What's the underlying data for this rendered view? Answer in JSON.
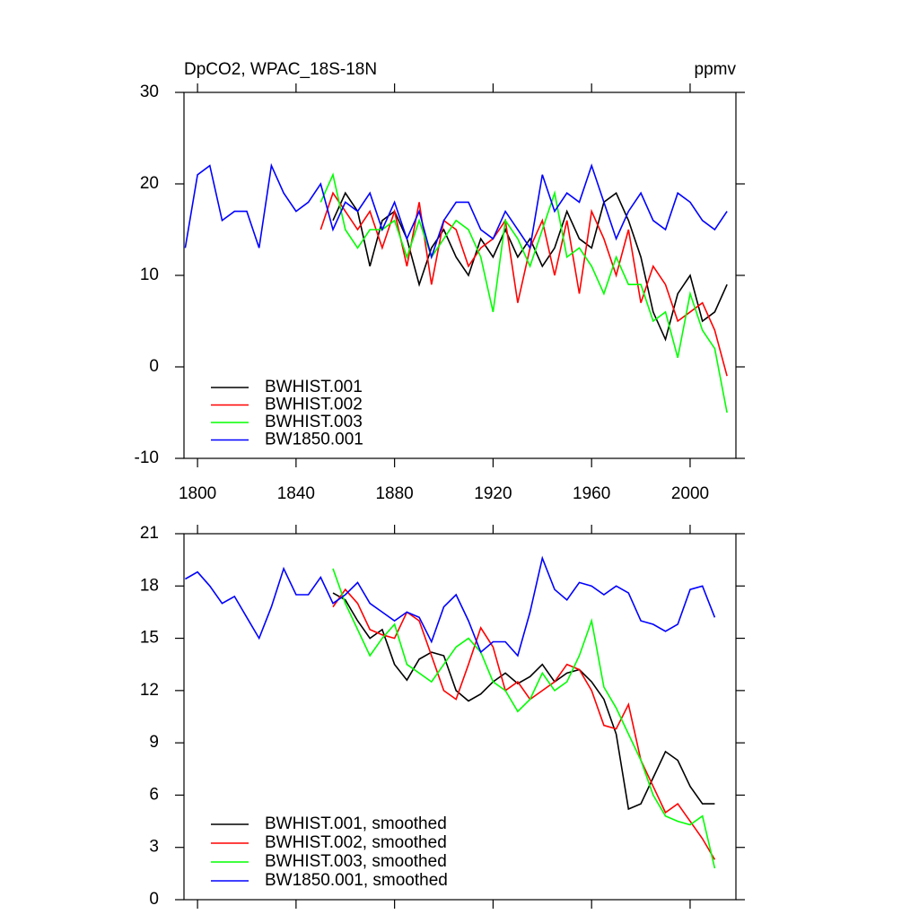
{
  "chart_data": [
    {
      "type": "line",
      "title": "DpCO2, WPAC_18S-18N",
      "units": "ppmv",
      "xlim": [
        1794.5,
        2018.6
      ],
      "xticks": [
        1800,
        1840,
        1880,
        1920,
        1960,
        2000
      ],
      "ylim": [
        -10,
        30
      ],
      "yticks": [
        -10,
        0,
        10,
        20,
        30
      ],
      "legend": "lower left",
      "series": [
        {
          "name": "BWHIST.001",
          "color": "#000000",
          "x": [
            1855,
            1860,
            1865,
            1870,
            1875,
            1880,
            1885,
            1890,
            1895,
            1900,
            1905,
            1910,
            1915,
            1920,
            1925,
            1930,
            1935,
            1940,
            1945,
            1950,
            1955,
            1960,
            1965,
            1970,
            1975,
            1980,
            1985,
            1990,
            1995,
            2000,
            2005,
            2010,
            2015
          ],
          "values": [
            16,
            19,
            17,
            11,
            16,
            17,
            14,
            9,
            13,
            15,
            12,
            10,
            14,
            12,
            15,
            12,
            14,
            11,
            13,
            17,
            14,
            13,
            18,
            19,
            16,
            12,
            6,
            3,
            8,
            10,
            5,
            6,
            9
          ]
        },
        {
          "name": "BWHIST.002",
          "color": "#ff0000",
          "x": [
            1850,
            1855,
            1860,
            1865,
            1870,
            1875,
            1880,
            1885,
            1890,
            1895,
            1900,
            1905,
            1910,
            1915,
            1920,
            1925,
            1930,
            1935,
            1940,
            1945,
            1950,
            1955,
            1960,
            1965,
            1970,
            1975,
            1980,
            1985,
            1990,
            1995,
            2000,
            2005,
            2010,
            2015
          ],
          "values": [
            15,
            19,
            17,
            15,
            17,
            13,
            17,
            11,
            18,
            9,
            16,
            15,
            11,
            13,
            14,
            16,
            7,
            13,
            16,
            10,
            16,
            8,
            17,
            14,
            10,
            15,
            7,
            11,
            9,
            5,
            6,
            7,
            4,
            -1
          ]
        },
        {
          "name": "BWHIST.003",
          "color": "#00ff00",
          "x": [
            1850,
            1855,
            1860,
            1865,
            1870,
            1875,
            1880,
            1885,
            1890,
            1895,
            1900,
            1905,
            1910,
            1915,
            1920,
            1925,
            1930,
            1935,
            1940,
            1945,
            1950,
            1955,
            1960,
            1965,
            1970,
            1975,
            1980,
            1985,
            1990,
            1995,
            2000,
            2005,
            2010,
            2015
          ],
          "values": [
            18,
            21,
            15,
            13,
            15,
            15,
            16,
            12,
            16,
            12,
            14,
            16,
            15,
            12,
            6,
            16,
            14,
            11,
            15,
            19,
            12,
            13,
            11,
            8,
            12,
            9,
            9,
            5,
            6,
            1,
            8,
            4,
            2,
            -5
          ]
        },
        {
          "name": "BW1850.001",
          "color": "#0000ff",
          "x": [
            1795,
            1800,
            1805,
            1810,
            1815,
            1820,
            1825,
            1830,
            1835,
            1840,
            1845,
            1850,
            1855,
            1860,
            1865,
            1870,
            1875,
            1880,
            1885,
            1890,
            1895,
            1900,
            1905,
            1910,
            1915,
            1920,
            1925,
            1930,
            1935,
            1940,
            1945,
            1950,
            1955,
            1960,
            1965,
            1970,
            1975,
            1980,
            1985,
            1990,
            1995,
            2000,
            2005,
            2010,
            2015
          ],
          "values": [
            13,
            21,
            22,
            16,
            17,
            17,
            13,
            22,
            19,
            17,
            18,
            20,
            15,
            18,
            17,
            19,
            15,
            18,
            14,
            17,
            12,
            16,
            18,
            18,
            15,
            14,
            17,
            15,
            13,
            21,
            17,
            19,
            18,
            22,
            18,
            14,
            17,
            19,
            16,
            15,
            19,
            18,
            16,
            15,
            17
          ]
        }
      ]
    },
    {
      "type": "line",
      "xlim": [
        1794.5,
        2018.6
      ],
      "ylim": [
        0,
        21
      ],
      "yticks": [
        0,
        3,
        6,
        9,
        12,
        15,
        18,
        21
      ],
      "legend": "lower left",
      "series": [
        {
          "name": "BWHIST.001, smoothed",
          "color": "#000000",
          "x": [
            1855,
            1860,
            1865,
            1870,
            1875,
            1880,
            1885,
            1890,
            1895,
            1900,
            1905,
            1910,
            1915,
            1920,
            1925,
            1930,
            1935,
            1940,
            1945,
            1950,
            1955,
            1960,
            1965,
            1970,
            1975,
            1980,
            1985,
            1990,
            1995,
            2000,
            2005,
            2010
          ],
          "values": [
            17.6,
            17.2,
            16,
            15,
            15.5,
            13.5,
            12.6,
            13.8,
            14.2,
            14,
            12,
            11.4,
            11.8,
            12.5,
            13,
            12.4,
            12.8,
            13.5,
            12.5,
            13,
            13.2,
            12.5,
            11.5,
            9.5,
            5.2,
            5.5,
            7,
            8.5,
            8,
            6.5,
            5.5,
            5.5
          ]
        },
        {
          "name": "BWHIST.002, smoothed",
          "color": "#ff0000",
          "x": [
            1855,
            1860,
            1865,
            1870,
            1875,
            1880,
            1885,
            1890,
            1895,
            1900,
            1905,
            1910,
            1915,
            1920,
            1925,
            1930,
            1935,
            1940,
            1945,
            1950,
            1955,
            1960,
            1965,
            1970,
            1975,
            1980,
            1985,
            1990,
            1995,
            2000,
            2005,
            2010
          ],
          "values": [
            16.8,
            17.8,
            17,
            15.5,
            15.2,
            15,
            16.5,
            16,
            14,
            12,
            11.5,
            13.5,
            15.6,
            14.5,
            12,
            12.5,
            11.5,
            12,
            12.5,
            13.5,
            13.2,
            12,
            10,
            9.8,
            11.2,
            8,
            6.5,
            5,
            5.5,
            4.5,
            3.5,
            2.3
          ]
        },
        {
          "name": "BWHIST.003, smoothed",
          "color": "#00ff00",
          "x": [
            1855,
            1860,
            1865,
            1870,
            1875,
            1880,
            1885,
            1890,
            1895,
            1900,
            1905,
            1910,
            1915,
            1920,
            1925,
            1930,
            1935,
            1940,
            1945,
            1950,
            1955,
            1960,
            1965,
            1970,
            1975,
            1980,
            1985,
            1990,
            1995,
            2000,
            2005,
            2010
          ],
          "values": [
            19,
            17,
            15.5,
            14,
            15,
            15.8,
            13.5,
            13,
            12.5,
            13.5,
            14.5,
            15,
            14.2,
            12.5,
            12,
            10.8,
            11.5,
            13,
            12,
            12.5,
            14,
            16,
            12.2,
            11,
            9.5,
            8,
            6,
            4.8,
            4.5,
            4.3,
            4.8,
            1.8
          ]
        },
        {
          "name": "BW1850.001, smoothed",
          "color": "#0000ff",
          "x": [
            1795,
            1800,
            1805,
            1810,
            1815,
            1820,
            1825,
            1830,
            1835,
            1840,
            1845,
            1850,
            1855,
            1860,
            1865,
            1870,
            1875,
            1880,
            1885,
            1890,
            1895,
            1900,
            1905,
            1910,
            1915,
            1920,
            1925,
            1930,
            1935,
            1940,
            1945,
            1950,
            1955,
            1960,
            1965,
            1970,
            1975,
            1980,
            1985,
            1990,
            1995,
            2000,
            2005,
            2010
          ],
          "values": [
            18.4,
            18.8,
            18,
            17,
            17.4,
            16.2,
            15,
            16.8,
            19,
            17.5,
            17.5,
            18.5,
            17,
            17.5,
            18.2,
            17,
            16.5,
            16,
            16.5,
            16.2,
            14.8,
            16.8,
            17.5,
            16,
            14.2,
            14.8,
            14.8,
            14,
            16.5,
            19.6,
            17.8,
            17.2,
            18.2,
            18,
            17.5,
            18,
            17.6,
            16,
            15.8,
            15.4,
            15.8,
            17.8,
            18,
            16.2
          ]
        }
      ]
    }
  ]
}
